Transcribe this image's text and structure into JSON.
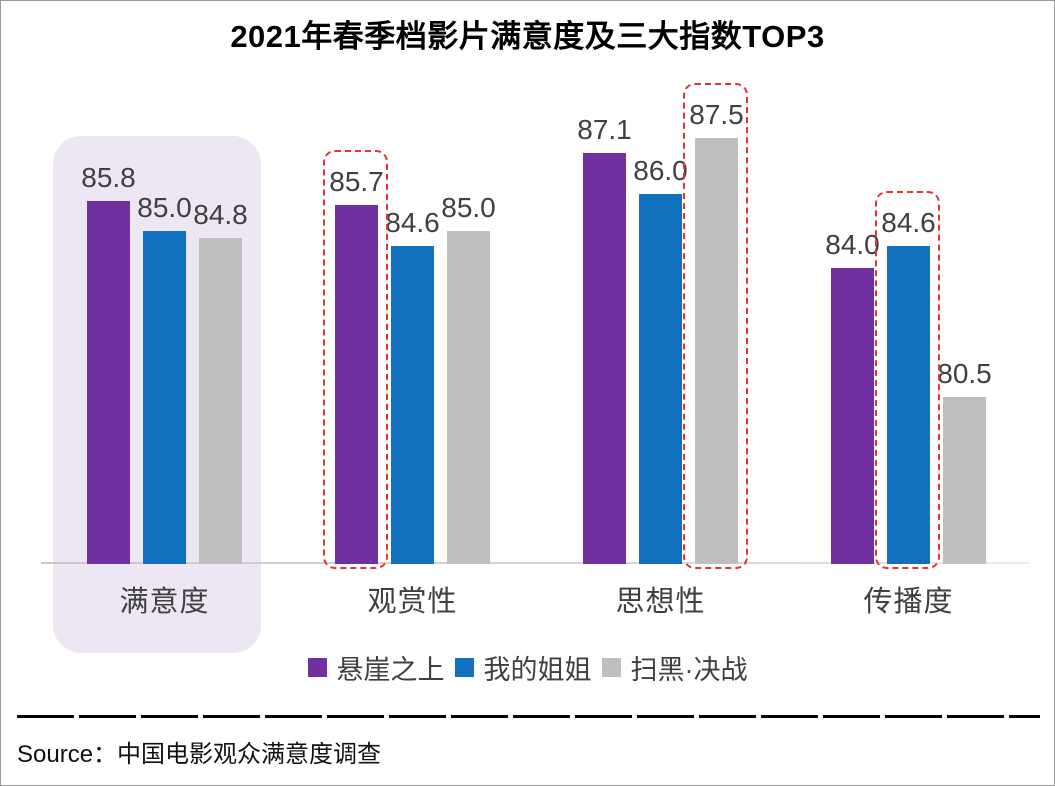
{
  "title": "2021年春季档影片满意度及三大指数TOP3",
  "source": {
    "label": "Source：中国电影观众满意度调查"
  },
  "chart_data": {
    "type": "bar",
    "title": "2021年春季档影片满意度及三大指数TOP3",
    "categories": [
      "满意度",
      "观赏性",
      "思想性",
      "传播度"
    ],
    "series": [
      {
        "name": "悬崖之上",
        "color": "#7030A0",
        "values": [
          85.8,
          85.7,
          87.1,
          84.0
        ]
      },
      {
        "name": "我的姐姐",
        "color": "#1171BE",
        "values": [
          85.0,
          84.6,
          86.0,
          84.6
        ]
      },
      {
        "name": "扫黑·决战",
        "color": "#BFBFBF",
        "values": [
          84.8,
          85.0,
          87.5,
          80.5
        ]
      }
    ],
    "ylim": [
      76,
      89
    ],
    "ylabel": "",
    "xlabel": "",
    "grid": false,
    "data_labels": true,
    "legend_position": "bottom",
    "highlighted_category": "满意度",
    "highlighted_bars": [
      {
        "category": "观赏性",
        "series": "悬崖之上",
        "value": 85.7
      },
      {
        "category": "思想性",
        "series": "扫黑·决战",
        "value": 87.5
      },
      {
        "category": "传播度",
        "series": "我的姐姐",
        "value": 84.6
      }
    ],
    "colors": {
      "category_highlight_fill": "#EDE7F3",
      "bar_highlight_border": "#E8322D",
      "axis_line": "#D9D9D9",
      "label_text": "#404040"
    }
  }
}
